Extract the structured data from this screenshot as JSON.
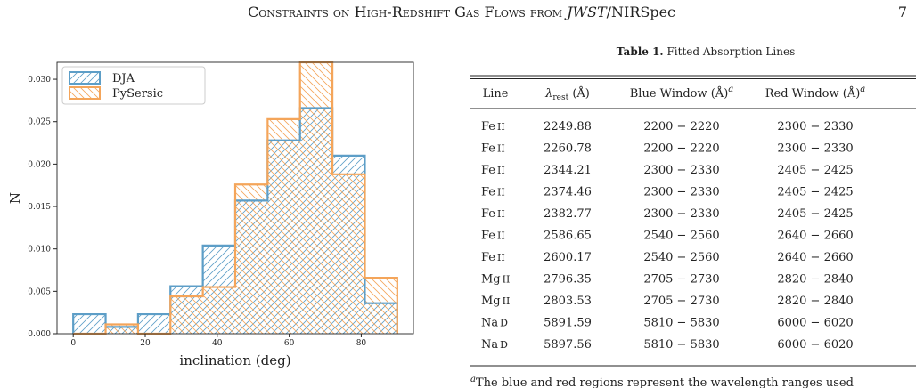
{
  "header": {
    "title_before": "Constraints on High-Redshift Gas Flows from ",
    "title_italic": "JWST",
    "title_after": "/NIRSpec",
    "page": "7"
  },
  "chart_data": {
    "type": "histogram",
    "xlabel": "inclination (deg)",
    "ylabel": "N",
    "bins": [
      0,
      9,
      18,
      27,
      36,
      45,
      54,
      63,
      72,
      81,
      90
    ],
    "series": [
      {
        "name": "DJA",
        "color": "#5d9ec7",
        "hatch": "/",
        "values": [
          0.0023,
          0.0008,
          0.0023,
          0.0056,
          0.0104,
          0.0157,
          0.0228,
          0.0266,
          0.021,
          0.0036
        ]
      },
      {
        "name": "PySersic",
        "color": "#f4a55a",
        "hatch": "\\",
        "values": [
          0,
          0.0011,
          0,
          0.0044,
          0.0055,
          0.0176,
          0.0253,
          0.032,
          0.0188,
          0.0066
        ]
      }
    ],
    "xlim": [
      -4.5,
      94.5
    ],
    "ylim": [
      0,
      0.032
    ],
    "xticks": [
      0,
      20,
      40,
      60,
      80
    ],
    "yticks": [
      {
        "value": 0,
        "label": "0.000"
      },
      {
        "value": 0.005,
        "label": "0.005"
      },
      {
        "value": 0.01,
        "label": "0.010"
      },
      {
        "value": 0.015,
        "label": "0.015"
      },
      {
        "value": 0.02,
        "label": "0.020"
      },
      {
        "value": 0.025,
        "label": "0.025"
      },
      {
        "value": 0.03,
        "label": "0.030"
      }
    ],
    "legend": "upper left",
    "grid": false
  },
  "table": {
    "label": "Table 1.",
    "caption": "Fitted Absorption Lines",
    "columns": [
      {
        "text": "Line"
      },
      {
        "text": "λ",
        "sub": "rest",
        "after": " (Å)"
      },
      {
        "text": "Blue Window (Å)",
        "note": "a"
      },
      {
        "text": "Red Window (Å)",
        "note": "a"
      }
    ],
    "rows": [
      [
        "Fe",
        "II",
        2249.88,
        "2200 − 2220",
        "2300 − 2330"
      ],
      [
        "Fe",
        "II",
        2260.78,
        "2200 − 2220",
        "2300 − 2330"
      ],
      [
        "Fe",
        "II",
        2344.21,
        "2300 − 2330",
        "2405 − 2425"
      ],
      [
        "Fe",
        "II",
        2374.46,
        "2300 − 2330",
        "2405 − 2425"
      ],
      [
        "Fe",
        "II",
        2382.77,
        "2300 − 2330",
        "2405 − 2425"
      ],
      [
        "Fe",
        "II",
        2586.65,
        "2540 − 2560",
        "2640 − 2660"
      ],
      [
        "Fe",
        "II",
        2600.17,
        "2540 − 2560",
        "2640 − 2660"
      ],
      [
        "Mg",
        "II",
        2796.35,
        "2705 − 2730",
        "2820 − 2840"
      ],
      [
        "Mg",
        "II",
        2803.53,
        "2705 − 2730",
        "2820 − 2840"
      ],
      [
        "Na",
        "D",
        5891.59,
        "5810 − 5830",
        "6000 − 6020"
      ],
      [
        "Na",
        "D",
        5897.56,
        "5810 − 5830",
        "6000 − 6020"
      ]
    ]
  },
  "footnote": {
    "marker": "a",
    "text": "The blue and red regions represent the wavelength ranges used"
  }
}
